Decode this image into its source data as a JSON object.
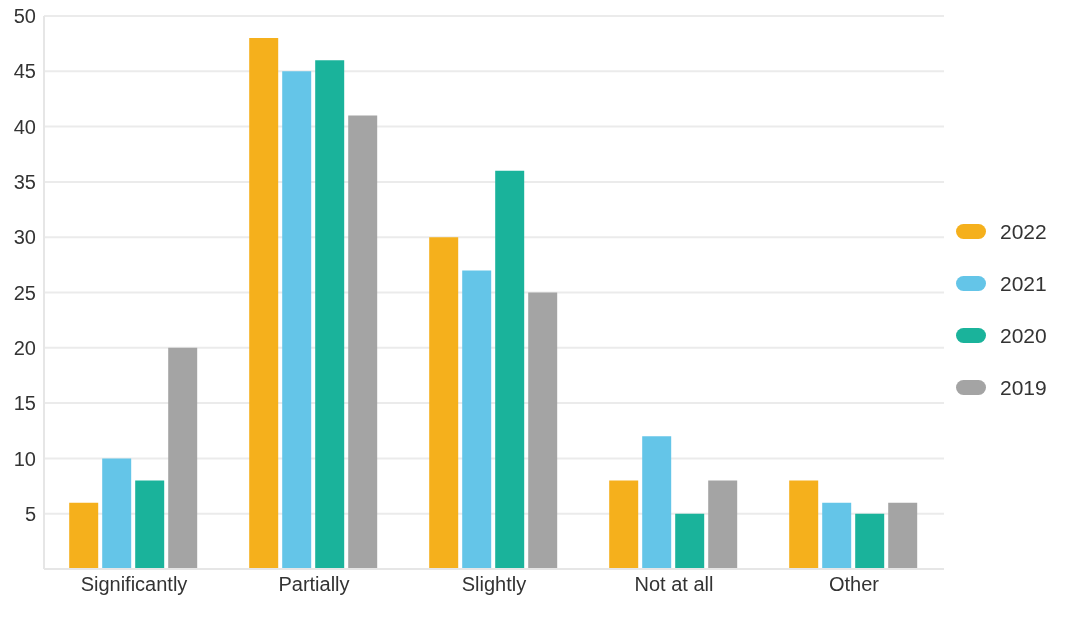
{
  "chart_data": {
    "type": "bar",
    "categories": [
      "Significantly",
      "Partially",
      "Slightly",
      "Not at all",
      "Other"
    ],
    "series": [
      {
        "name": "2022",
        "color": "#f5b01c",
        "values": [
          6,
          48,
          30,
          8,
          8
        ]
      },
      {
        "name": "2021",
        "color": "#64c5e8",
        "values": [
          10,
          45,
          27,
          12,
          6
        ]
      },
      {
        "name": "2020",
        "color": "#1ab39b",
        "values": [
          8,
          46,
          36,
          5,
          5
        ]
      },
      {
        "name": "2019",
        "color": "#a4a4a4",
        "values": [
          20,
          41,
          25,
          8,
          6
        ]
      }
    ],
    "ylim": [
      0,
      50
    ],
    "yticks": [
      5,
      10,
      15,
      20,
      25,
      30,
      35,
      40,
      45,
      50
    ],
    "grid": "y",
    "legend": "right"
  }
}
